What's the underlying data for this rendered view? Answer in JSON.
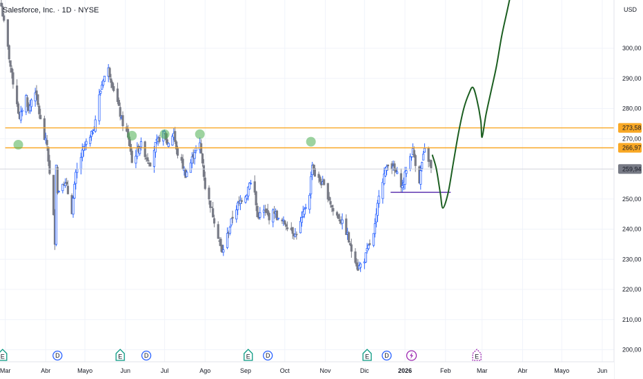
{
  "header": {
    "title": "Salesforce, Inc. · 1D · NYSE"
  },
  "chart_data": {
    "type": "candlestick",
    "currency": "USD",
    "ylim": [
      196,
      316
    ],
    "y_ticks": [
      {
        "value": 300,
        "label": "300,00"
      },
      {
        "value": 290,
        "label": "290,00"
      },
      {
        "value": 280,
        "label": "280,00"
      },
      {
        "value": 270,
        "label": "270,00"
      },
      {
        "value": 250,
        "label": "250,00"
      },
      {
        "value": 240,
        "label": "240,00"
      },
      {
        "value": 230,
        "label": "230,00"
      },
      {
        "value": 220,
        "label": "220,00"
      },
      {
        "value": 210,
        "label": "210,00"
      },
      {
        "value": 200,
        "label": "200,00"
      }
    ],
    "x_range": [
      "2025-02-25",
      "2026-06-10"
    ],
    "x_ticks": [
      {
        "date": "2025-03-01",
        "label": "Mar",
        "bold": false
      },
      {
        "date": "2025-04-01",
        "label": "Abr",
        "bold": false
      },
      {
        "date": "2025-05-01",
        "label": "Mayo",
        "bold": false
      },
      {
        "date": "2025-06-01",
        "label": "Jun",
        "bold": false
      },
      {
        "date": "2025-07-01",
        "label": "Jul",
        "bold": false
      },
      {
        "date": "2025-08-01",
        "label": "Ago",
        "bold": false
      },
      {
        "date": "2025-09-01",
        "label": "Sep",
        "bold": false
      },
      {
        "date": "2025-10-01",
        "label": "Oct",
        "bold": false
      },
      {
        "date": "2025-11-01",
        "label": "Nov",
        "bold": false
      },
      {
        "date": "2025-12-01",
        "label": "Dic",
        "bold": false
      },
      {
        "date": "2026-01-01",
        "label": "2026",
        "bold": true
      },
      {
        "date": "2026-02-01",
        "label": "Feb",
        "bold": false
      },
      {
        "date": "2026-03-01",
        "label": "Mar",
        "bold": false
      },
      {
        "date": "2026-04-01",
        "label": "Abr",
        "bold": false
      },
      {
        "date": "2026-05-01",
        "label": "Mayo",
        "bold": false
      },
      {
        "date": "2026-06-01",
        "label": "Jun",
        "bold": false
      }
    ],
    "last_price": {
      "value": 259.94,
      "label": "259,94"
    },
    "price_path": [
      [
        "2025-02-26",
        314
      ],
      [
        "2025-03-03",
        300
      ],
      [
        "2025-03-06",
        291
      ],
      [
        "2025-03-10",
        282
      ],
      [
        "2025-03-12",
        276
      ],
      [
        "2025-03-14",
        280
      ],
      [
        "2025-03-17",
        284
      ],
      [
        "2025-03-19",
        279
      ],
      [
        "2025-03-21",
        283
      ],
      [
        "2025-03-24",
        286
      ],
      [
        "2025-03-26",
        281
      ],
      [
        "2025-03-28",
        276
      ],
      [
        "2025-03-31",
        270
      ],
      [
        "2025-04-02",
        268
      ],
      [
        "2025-04-04",
        258
      ],
      [
        "2025-04-07",
        244
      ],
      [
        "2025-04-08",
        236
      ],
      [
        "2025-04-09",
        262
      ],
      [
        "2025-04-10",
        252
      ],
      [
        "2025-04-14",
        256
      ],
      [
        "2025-04-17",
        254
      ],
      [
        "2025-04-21",
        246
      ],
      [
        "2025-04-22",
        250
      ],
      [
        "2025-04-24",
        258
      ],
      [
        "2025-04-28",
        264
      ],
      [
        "2025-05-01",
        268
      ],
      [
        "2025-05-05",
        270
      ],
      [
        "2025-05-08",
        274
      ],
      [
        "2025-05-12",
        284
      ],
      [
        "2025-05-15",
        290
      ],
      [
        "2025-05-19",
        293
      ],
      [
        "2025-05-22",
        288
      ],
      [
        "2025-05-26",
        282
      ],
      [
        "2025-05-29",
        276
      ],
      [
        "2025-06-02",
        272
      ],
      [
        "2025-06-05",
        266
      ],
      [
        "2025-06-06",
        262
      ],
      [
        "2025-06-10",
        266
      ],
      [
        "2025-06-13",
        268
      ],
      [
        "2025-06-17",
        264
      ],
      [
        "2025-06-20",
        262
      ],
      [
        "2025-06-24",
        268
      ],
      [
        "2025-06-27",
        270
      ],
      [
        "2025-07-01",
        272
      ],
      [
        "2025-07-03",
        268
      ],
      [
        "2025-07-08",
        272
      ],
      [
        "2025-07-10",
        266
      ],
      [
        "2025-07-14",
        262
      ],
      [
        "2025-07-17",
        258
      ],
      [
        "2025-07-21",
        262
      ],
      [
        "2025-07-24",
        266
      ],
      [
        "2025-07-28",
        268
      ],
      [
        "2025-07-30",
        262
      ],
      [
        "2025-08-01",
        254
      ],
      [
        "2025-08-05",
        248
      ],
      [
        "2025-08-08",
        243
      ],
      [
        "2025-08-12",
        236
      ],
      [
        "2025-08-14",
        232
      ],
      [
        "2025-08-18",
        238
      ],
      [
        "2025-08-22",
        244
      ],
      [
        "2025-08-26",
        248
      ],
      [
        "2025-08-29",
        250
      ],
      [
        "2025-09-02",
        252
      ],
      [
        "2025-09-04",
        256
      ],
      [
        "2025-09-08",
        252
      ],
      [
        "2025-09-10",
        244
      ],
      [
        "2025-09-15",
        246
      ],
      [
        "2025-09-19",
        244
      ],
      [
        "2025-09-23",
        246
      ],
      [
        "2025-09-26",
        243
      ],
      [
        "2025-10-01",
        242
      ],
      [
        "2025-10-06",
        240
      ],
      [
        "2025-10-09",
        238
      ],
      [
        "2025-10-13",
        242
      ],
      [
        "2025-10-16",
        246
      ],
      [
        "2025-10-20",
        252
      ],
      [
        "2025-10-22",
        262
      ],
      [
        "2025-10-24",
        258
      ],
      [
        "2025-10-28",
        256
      ],
      [
        "2025-10-31",
        254
      ],
      [
        "2025-11-04",
        250
      ],
      [
        "2025-11-07",
        246
      ],
      [
        "2025-11-11",
        244
      ],
      [
        "2025-11-14",
        242
      ],
      [
        "2025-11-18",
        238
      ],
      [
        "2025-11-20",
        234
      ],
      [
        "2025-11-24",
        230
      ],
      [
        "2025-11-26",
        227
      ],
      [
        "2025-12-01",
        230
      ],
      [
        "2025-12-04",
        234
      ],
      [
        "2025-12-08",
        238
      ],
      [
        "2025-12-10",
        244
      ],
      [
        "2025-12-12",
        252
      ],
      [
        "2025-12-16",
        258
      ],
      [
        "2025-12-19",
        262
      ],
      [
        "2025-12-23",
        260
      ],
      [
        "2025-12-26",
        258
      ],
      [
        "2025-12-30",
        254
      ],
      [
        "2026-01-02",
        260
      ],
      [
        "2026-01-05",
        264
      ],
      [
        "2026-01-07",
        266
      ],
      [
        "2026-01-09",
        262
      ],
      [
        "2026-01-12",
        256
      ],
      [
        "2026-01-14",
        262
      ],
      [
        "2026-01-16",
        266
      ],
      [
        "2026-01-20",
        262
      ],
      [
        "2026-01-21",
        259.94
      ]
    ],
    "horizontal_levels": [
      {
        "value": 273.58,
        "label": "273,58",
        "color": "#F9A825",
        "start": "2025-03-01"
      },
      {
        "value": 266.97,
        "label": "266,97",
        "color": "#F9A825",
        "start": "2025-03-01"
      }
    ],
    "support_segment": {
      "from": "2025-12-21",
      "to": "2026-02-05",
      "value": 252.2,
      "color": "#5E35B1"
    },
    "touch_markers": [
      {
        "date": "2025-03-11",
        "value": 268.0
      },
      {
        "date": "2025-06-06",
        "value": 271.0
      },
      {
        "date": "2025-07-01",
        "value": 271.5
      },
      {
        "date": "2025-07-28",
        "value": 271.5
      },
      {
        "date": "2025-10-21",
        "value": 269.0
      }
    ],
    "forecast_path": {
      "color": "#1B5E20",
      "points": [
        [
          "2026-01-22",
          264.5
        ],
        [
          "2026-01-25",
          260
        ],
        [
          "2026-01-28",
          252
        ],
        [
          "2026-01-30",
          247
        ],
        [
          "2026-02-03",
          252
        ],
        [
          "2026-02-07",
          262
        ],
        [
          "2026-02-11",
          272
        ],
        [
          "2026-02-15",
          280
        ],
        [
          "2026-02-19",
          285
        ],
        [
          "2026-02-22",
          287
        ],
        [
          "2026-02-25",
          283
        ],
        [
          "2026-02-28",
          276
        ],
        [
          "2026-03-01",
          270.5
        ],
        [
          "2026-03-04",
          278
        ],
        [
          "2026-03-08",
          286
        ],
        [
          "2026-03-12",
          294
        ],
        [
          "2026-03-16",
          304
        ],
        [
          "2026-03-20",
          312
        ],
        [
          "2026-03-23",
          318
        ]
      ]
    },
    "events": [
      {
        "date": "2025-02-27",
        "type": "E",
        "color": "#089981"
      },
      {
        "date": "2025-04-10",
        "type": "D",
        "color": "#2962FF"
      },
      {
        "date": "2025-05-28",
        "type": "E",
        "color": "#089981"
      },
      {
        "date": "2025-06-17",
        "type": "D",
        "color": "#2962FF"
      },
      {
        "date": "2025-09-03",
        "type": "E",
        "color": "#089981"
      },
      {
        "date": "2025-09-18",
        "type": "D",
        "color": "#2962FF"
      },
      {
        "date": "2025-12-03",
        "type": "E",
        "color": "#089981"
      },
      {
        "date": "2025-12-18",
        "type": "D",
        "color": "#2962FF"
      },
      {
        "date": "2026-01-06",
        "type": "bolt",
        "color": "#9C27B0"
      },
      {
        "date": "2026-02-25",
        "type": "E",
        "color": "#9C27B0",
        "dashed": true
      }
    ],
    "colors": {
      "up": "#2962FF",
      "down": "#787B86",
      "grid": "#F0F3FA",
      "axis_text": "#131722"
    }
  }
}
